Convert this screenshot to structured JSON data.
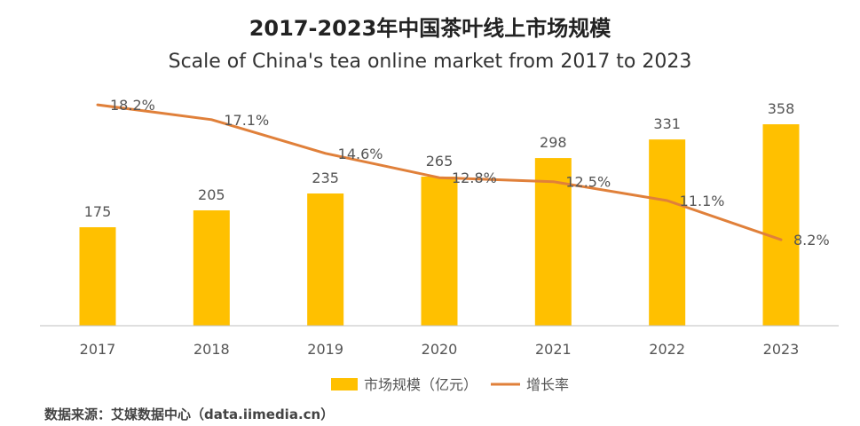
{
  "title": "2017-2023年中国茶叶线上市场规模",
  "subtitle": "Scale of China's tea online market from 2017 to 2023",
  "source": "数据来源：艾媒数据中心（data.iimedia.cn）",
  "colors": {
    "bar": "#FFC000",
    "line": "#E0803A",
    "axis": "#BFBFBF",
    "label": "#555555"
  },
  "chart_data": {
    "type": "bar",
    "categories": [
      "2017",
      "2018",
      "2019",
      "2020",
      "2021",
      "2022",
      "2023"
    ],
    "series": [
      {
        "name": "市场规模（亿元）",
        "type": "bar",
        "values": [
          175,
          205,
          235,
          265,
          298,
          331,
          358
        ],
        "labels": [
          "175",
          "205",
          "235",
          "265",
          "298",
          "331",
          "358"
        ]
      },
      {
        "name": "增长率",
        "type": "line",
        "values": [
          18.2,
          17.1,
          14.6,
          12.8,
          12.5,
          11.1,
          8.2
        ],
        "labels": [
          "18.2%",
          "17.1%",
          "14.6%",
          "12.8%",
          "12.5%",
          "11.1%",
          "8.2%"
        ]
      }
    ],
    "legend_position": "bottom",
    "grid": false
  }
}
